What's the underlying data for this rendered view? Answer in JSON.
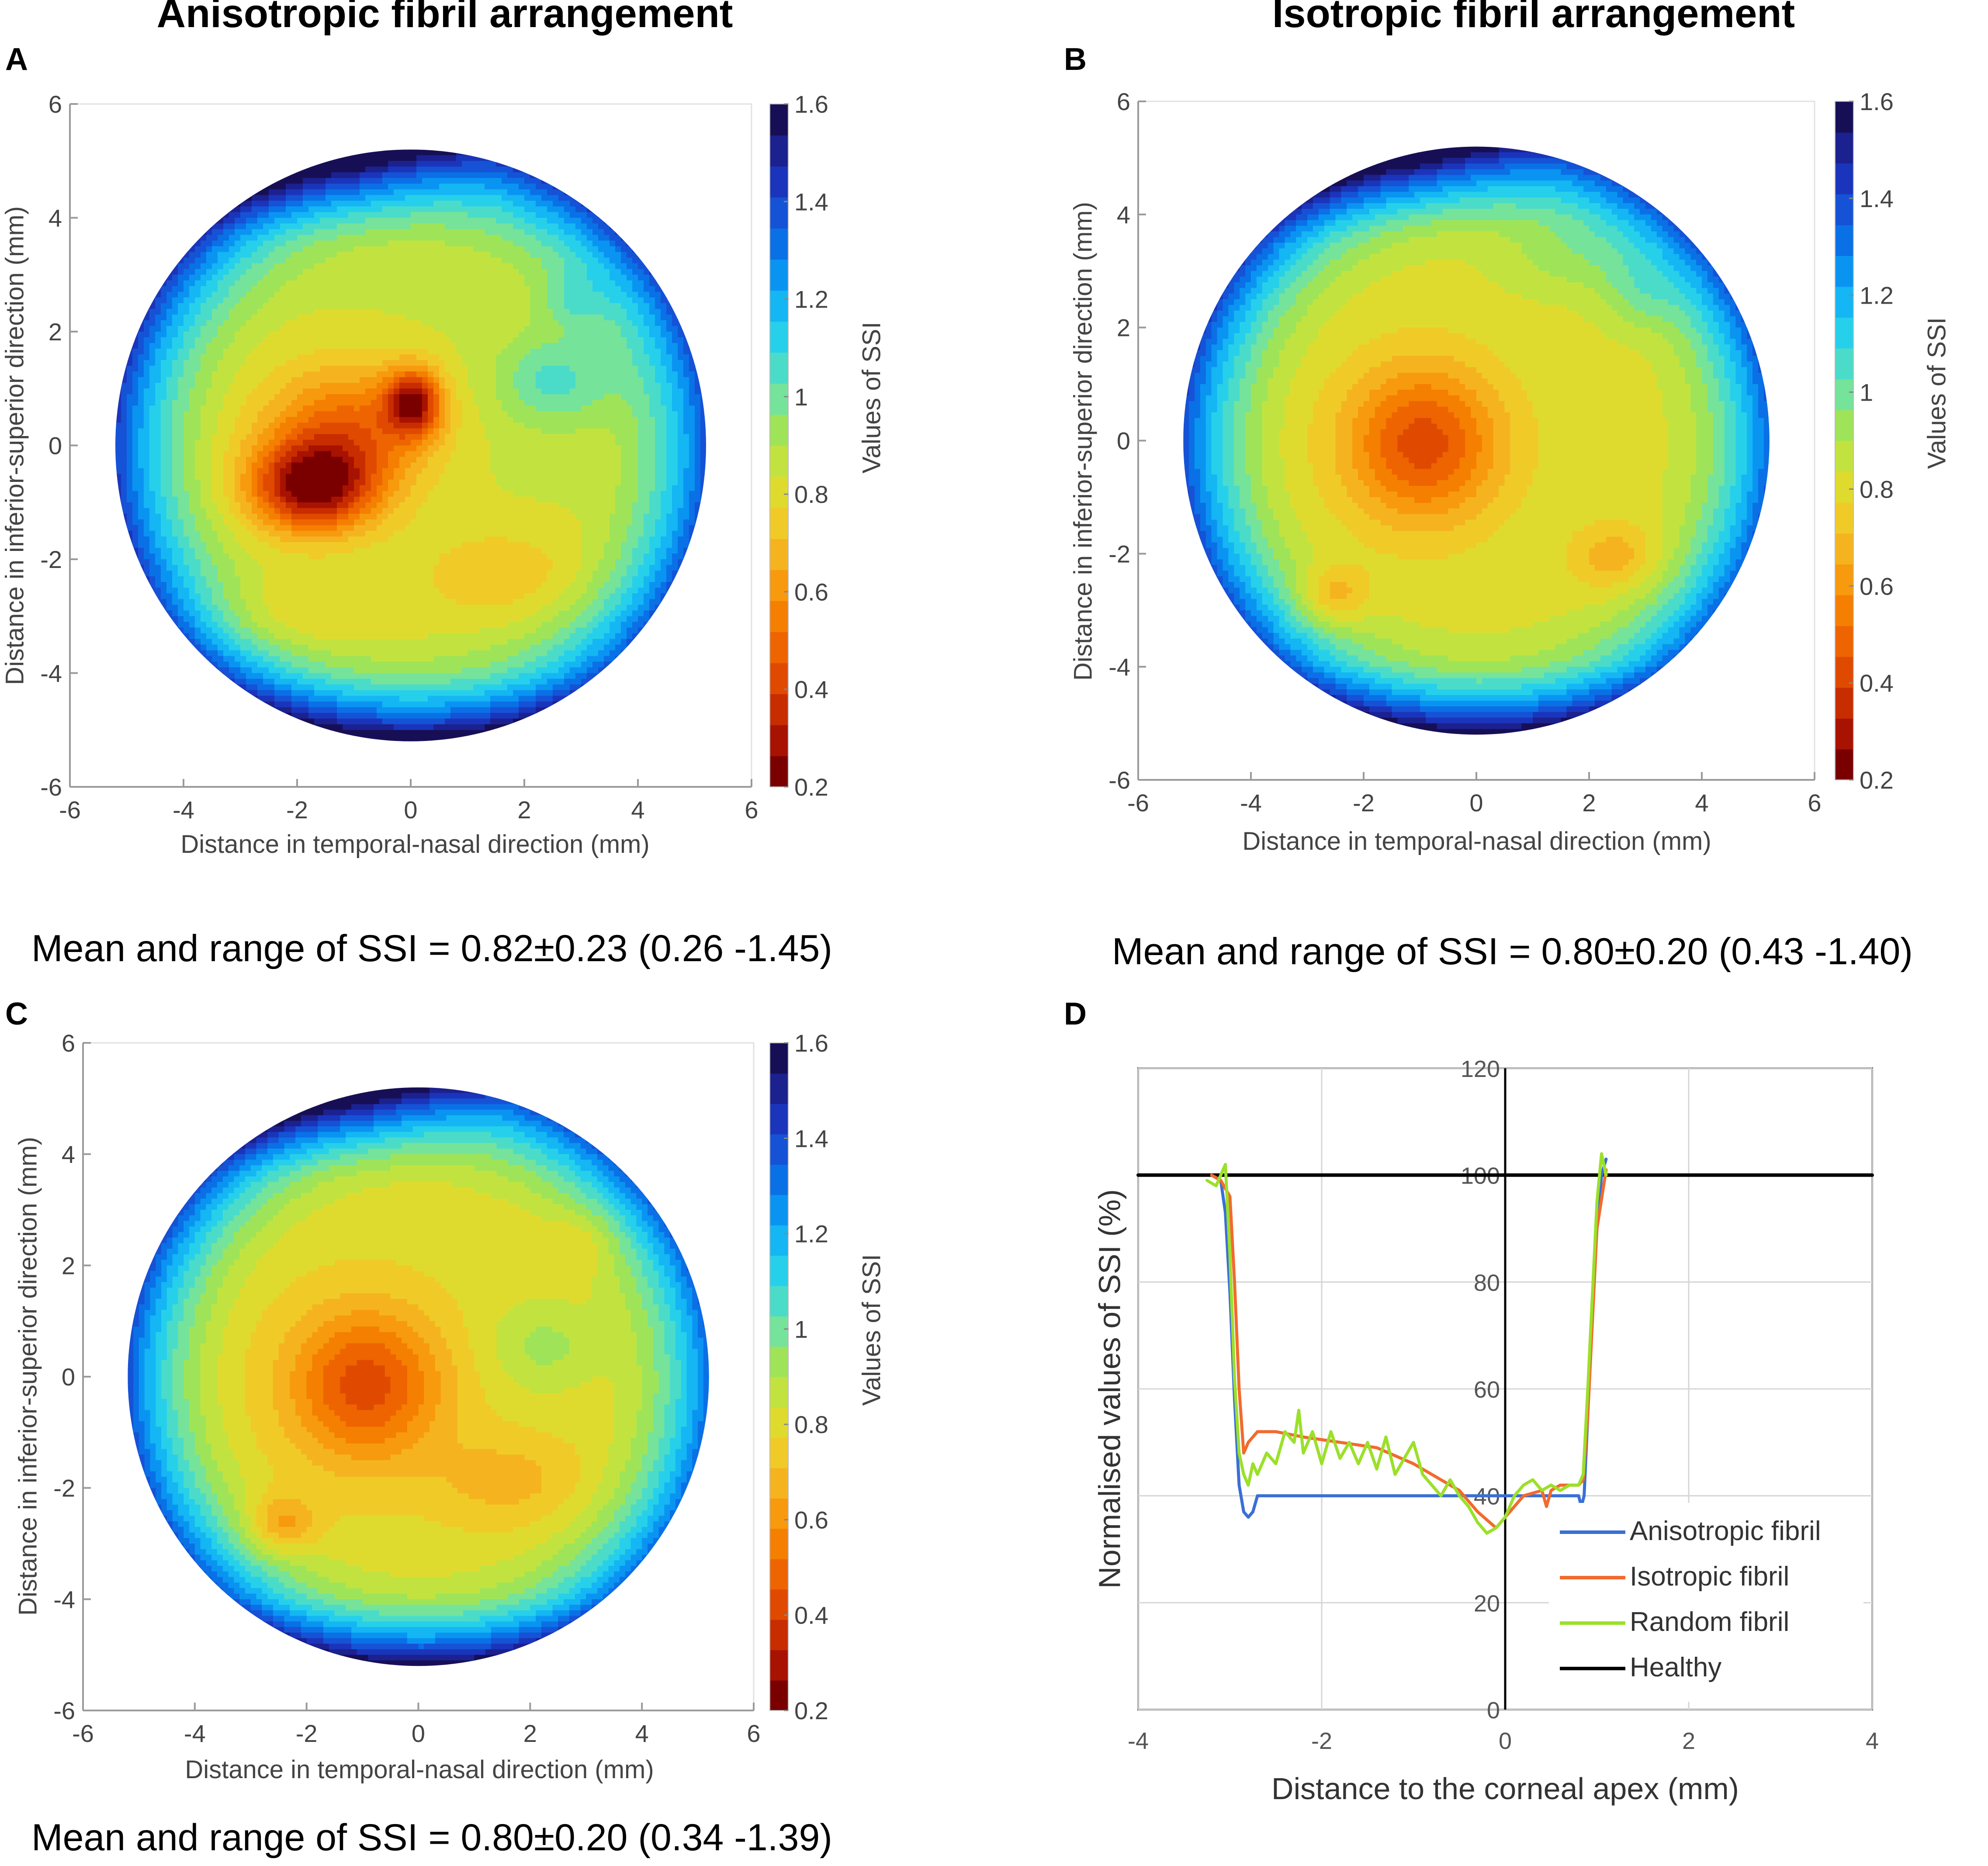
{
  "figure": {
    "col_titles": [
      "Anisotropic fibril arrangement",
      "Isotropic fibril arrangement"
    ],
    "panel_letters": [
      "A",
      "B",
      "C",
      "D"
    ]
  },
  "colors": {
    "colormap": [
      "#7a0000",
      "#a81200",
      "#c82d00",
      "#e04a00",
      "#ee6400",
      "#f57f00",
      "#f79a0e",
      "#f5b41f",
      "#f0cb28",
      "#dfdb2e",
      "#c2e33f",
      "#9fe458",
      "#76e39a",
      "#4bdcc9",
      "#27d0ea",
      "#14b6f4",
      "#0a94f2",
      "#0a70e6",
      "#1552d6",
      "#1a35bb",
      "#1b218f",
      "#170f56"
    ],
    "axis": "#9a9a9a",
    "grid": "#d6d6d6",
    "anisotropic": "#3a6fd6",
    "isotropic": "#f26a2e",
    "random": "#9be02a",
    "healthy": "#000000"
  },
  "chart_data": [
    {
      "panel": "A",
      "type": "heatmap",
      "title": "Anisotropic fibril arrangement",
      "xlabel": "Distance in temporal-nasal direction (mm)",
      "ylabel": "Distance in inferior-superior direction (mm)",
      "xlim": [
        -6,
        6
      ],
      "ylim": [
        -6,
        6
      ],
      "xticks": [
        "-6",
        "-4",
        "-2",
        "0",
        "2",
        "4",
        "6"
      ],
      "yticks": [
        "6",
        "4",
        "2",
        "0",
        "-2",
        "-4",
        "-6"
      ],
      "colorbar_label": "Values of SSI",
      "colorbar_ticks": [
        "1.6",
        "1.4",
        "1.2",
        "1",
        "0.8",
        "0.6",
        "0.4",
        "0.2"
      ],
      "clim": [
        0.2,
        1.6
      ],
      "domain_radius_mm": 5.2,
      "background_ssi": 0.85,
      "features": [
        {
          "x": -1.8,
          "y": -0.7,
          "sx": 1.1,
          "sy": 0.8,
          "ssi": -0.55
        },
        {
          "x": 0.0,
          "y": 0.8,
          "sx": 0.5,
          "sy": 0.6,
          "ssi": -0.5
        },
        {
          "x": -1.2,
          "y": 0.3,
          "sx": 1.5,
          "sy": 1.2,
          "ssi": -0.35
        },
        {
          "x": 2.5,
          "y": 1.2,
          "sx": 1.0,
          "sy": 0.8,
          "ssi": 0.2
        },
        {
          "x": 2.8,
          "y": 2.6,
          "sx": 0.6,
          "sy": 0.5,
          "ssi": 0.12
        },
        {
          "x": 1.5,
          "y": -2.2,
          "sx": 1.6,
          "sy": 0.9,
          "ssi": -0.12
        },
        {
          "x": -2.2,
          "y": -3.0,
          "sx": 1.8,
          "sy": 0.7,
          "ssi": -0.1
        }
      ],
      "caption": "Mean and range of SSI = 0.82±0.23 (0.26 -1.45)"
    },
    {
      "panel": "B",
      "type": "heatmap",
      "title": "Isotropic fibril arrangement",
      "xlabel": "Distance in temporal-nasal direction (mm)",
      "ylabel": "Distance in inferior-superior direction (mm)",
      "xlim": [
        -6,
        6
      ],
      "ylim": [
        -6,
        6
      ],
      "xticks": [
        "-6",
        "-4",
        "-2",
        "0",
        "2",
        "4",
        "6"
      ],
      "yticks": [
        "6",
        "4",
        "2",
        "0",
        "-2",
        "-4",
        "-6"
      ],
      "colorbar_label": "Values of SSI",
      "colorbar_ticks": [
        "1.6",
        "1.4",
        "1.2",
        "1",
        "0.8",
        "0.6",
        "0.4",
        "0.2"
      ],
      "clim": [
        0.2,
        1.6
      ],
      "domain_radius_mm": 5.2,
      "background_ssi": 0.82,
      "features": [
        {
          "x": -1.0,
          "y": 0.0,
          "sx": 1.4,
          "sy": 1.4,
          "ssi": -0.4
        },
        {
          "x": 2.4,
          "y": -2.0,
          "sx": 0.8,
          "sy": 0.6,
          "ssi": -0.15
        },
        {
          "x": -2.6,
          "y": -2.7,
          "sx": 0.6,
          "sy": 0.5,
          "ssi": -0.18
        },
        {
          "x": 2.8,
          "y": 2.6,
          "sx": 0.7,
          "sy": 0.6,
          "ssi": 0.1
        },
        {
          "x": 1.5,
          "y": 3.2,
          "sx": 1.2,
          "sy": 0.6,
          "ssi": 0.08
        }
      ],
      "caption": "Mean and range of SSI = 0.80±0.20 (0.43 -1.40)"
    },
    {
      "panel": "C",
      "type": "heatmap",
      "title": "",
      "xlabel": "Distance in temporal-nasal direction (mm)",
      "ylabel": "Distance in inferior-superior direction (mm)",
      "xlim": [
        -6,
        6
      ],
      "ylim": [
        -6,
        6
      ],
      "xticks": [
        "-6",
        "-4",
        "-2",
        "0",
        "2",
        "4",
        "6"
      ],
      "yticks": [
        "6",
        "4",
        "2",
        "0",
        "-2",
        "-4",
        "-6"
      ],
      "colorbar_label": "Values of SSI",
      "colorbar_ticks": [
        "1.6",
        "1.4",
        "1.2",
        "1",
        "0.8",
        "0.6",
        "0.4",
        "0.2"
      ],
      "clim": [
        0.2,
        1.6
      ],
      "domain_radius_mm": 5.2,
      "background_ssi": 0.8,
      "features": [
        {
          "x": -1.0,
          "y": -0.1,
          "sx": 1.4,
          "sy": 1.4,
          "ssi": -0.38
        },
        {
          "x": -2.5,
          "y": -2.6,
          "sx": 0.6,
          "sy": 0.5,
          "ssi": -0.2
        },
        {
          "x": 1.5,
          "y": -1.8,
          "sx": 1.3,
          "sy": 0.8,
          "ssi": -0.12
        },
        {
          "x": 2.9,
          "y": 2.5,
          "sx": 0.6,
          "sy": 0.5,
          "ssi": -0.08
        },
        {
          "x": 2.2,
          "y": 0.6,
          "sx": 1.0,
          "sy": 0.8,
          "ssi": 0.12
        }
      ],
      "caption": "Mean and range of SSI = 0.80±0.20 (0.34 -1.39)"
    },
    {
      "panel": "D",
      "type": "line",
      "xlabel": "Distance to the corneal apex (mm)",
      "ylabel": "Normalised values of SSI (%)",
      "xlim": [
        -4,
        4
      ],
      "ylim": [
        0,
        120
      ],
      "xticks": [
        "-4",
        "-2",
        "0",
        "2",
        "4"
      ],
      "yticks": [
        "120",
        "100",
        "80",
        "60",
        "40",
        "20",
        "0"
      ],
      "series": [
        {
          "name": "Anisotropic fibril",
          "color": "#3a6fd6",
          "x": [
            -3.2,
            -3.1,
            -3.05,
            -3.0,
            -2.95,
            -2.9,
            -2.85,
            -2.8,
            -2.75,
            -2.7,
            -2.6,
            -2.0,
            -1.0,
            0.0,
            0.8,
            0.83,
            0.86,
            0.9,
            0.95,
            1.0,
            1.05,
            1.1
          ],
          "y": [
            100,
            99,
            93,
            78,
            58,
            42,
            37,
            36,
            37,
            40,
            40,
            40,
            40,
            40,
            40,
            38,
            40,
            55,
            75,
            90,
            100,
            103
          ]
        },
        {
          "name": "Isotropic fibril",
          "color": "#f26a2e",
          "x": [
            -3.2,
            -3.1,
            -3.0,
            -2.95,
            -2.9,
            -2.85,
            -2.8,
            -2.7,
            -2.5,
            -2.2,
            -1.8,
            -1.4,
            -1.0,
            -0.8,
            -0.5,
            -0.3,
            -0.1,
            0.0,
            0.2,
            0.4,
            0.45,
            0.5,
            0.6,
            0.8,
            0.85,
            0.9,
            1.0,
            1.1
          ],
          "y": [
            100,
            99,
            96,
            80,
            60,
            48,
            50,
            52,
            52,
            51,
            50,
            49,
            46,
            44,
            41,
            37,
            34,
            36,
            40,
            41,
            38,
            41,
            42,
            42,
            43,
            55,
            90,
            101
          ]
        },
        {
          "name": "Random fibril",
          "color": "#9be02a",
          "x": [
            -3.25,
            -3.15,
            -3.05,
            -3.0,
            -2.95,
            -2.9,
            -2.85,
            -2.8,
            -2.75,
            -2.7,
            -2.6,
            -2.5,
            -2.4,
            -2.3,
            -2.25,
            -2.2,
            -2.1,
            -2.0,
            -1.9,
            -1.8,
            -1.7,
            -1.6,
            -1.5,
            -1.4,
            -1.3,
            -1.2,
            -1.1,
            -1.0,
            -0.9,
            -0.8,
            -0.7,
            -0.6,
            -0.5,
            -0.4,
            -0.3,
            -0.2,
            -0.1,
            0.0,
            0.1,
            0.2,
            0.3,
            0.4,
            0.5,
            0.6,
            0.7,
            0.8,
            0.85,
            0.9,
            1.0,
            1.05,
            1.1
          ],
          "y": [
            99,
            98,
            102,
            85,
            62,
            48,
            44,
            42,
            46,
            44,
            48,
            46,
            52,
            50,
            56,
            48,
            52,
            46,
            52,
            47,
            50,
            46,
            50,
            45,
            51,
            44,
            47,
            50,
            44,
            42,
            40,
            43,
            40,
            38,
            35,
            33,
            34,
            36,
            40,
            42,
            43,
            41,
            42,
            41,
            42,
            42,
            44,
            60,
            95,
            104,
            100
          ]
        },
        {
          "name": "Healthy",
          "color": "#000000",
          "x": [
            -4,
            4
          ],
          "y": [
            100,
            100
          ]
        }
      ]
    }
  ]
}
